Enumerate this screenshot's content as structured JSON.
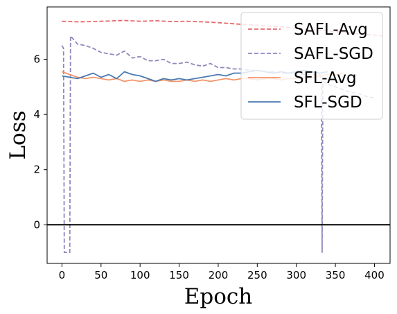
{
  "chart_data": {
    "type": "line",
    "title": "",
    "xlabel": "Epoch",
    "ylabel": "Loss",
    "xlim": [
      -19,
      420
    ],
    "ylim": [
      -1.4,
      7.9
    ],
    "xticks": [
      0,
      50,
      100,
      150,
      200,
      250,
      300,
      350,
      400
    ],
    "yticks": [
      0,
      2,
      4,
      6
    ],
    "grid": false,
    "legend": "top-right",
    "reference_line": {
      "y": 0,
      "color": "#000000"
    },
    "series": [
      {
        "name": "SAFL-Avg",
        "color": "#e8676b",
        "dash": "dashed",
        "points": [
          [
            0,
            7.38
          ],
          [
            20,
            7.36
          ],
          [
            40,
            7.37
          ],
          [
            60,
            7.39
          ],
          [
            80,
            7.41
          ],
          [
            100,
            7.38
          ],
          [
            120,
            7.4
          ],
          [
            140,
            7.37
          ],
          [
            160,
            7.38
          ],
          [
            180,
            7.36
          ],
          [
            200,
            7.33
          ],
          [
            220,
            7.29
          ],
          [
            240,
            7.25
          ],
          [
            260,
            7.22
          ],
          [
            280,
            7.18
          ],
          [
            300,
            7.12
          ],
          [
            320,
            7.08
          ],
          [
            340,
            7.03
          ],
          [
            360,
            6.98
          ],
          [
            380,
            6.92
          ],
          [
            400,
            6.88
          ],
          [
            410,
            6.85
          ]
        ]
      },
      {
        "name": "SAFL-SGD",
        "color": "#8d88bd",
        "dash": "dashed",
        "points": [
          [
            0,
            6.5
          ],
          [
            2,
            6.4
          ],
          [
            3,
            -1.0
          ],
          [
            10,
            -1.0
          ],
          [
            11,
            6.85
          ],
          [
            14,
            6.75
          ],
          [
            20,
            6.55
          ],
          [
            30,
            6.5
          ],
          [
            40,
            6.4
          ],
          [
            50,
            6.25
          ],
          [
            60,
            6.2
          ],
          [
            70,
            6.15
          ],
          [
            80,
            6.3
          ],
          [
            90,
            6.05
          ],
          [
            100,
            6.1
          ],
          [
            110,
            5.95
          ],
          [
            120,
            5.95
          ],
          [
            130,
            6.0
          ],
          [
            140,
            5.85
          ],
          [
            150,
            5.85
          ],
          [
            160,
            5.9
          ],
          [
            170,
            5.8
          ],
          [
            180,
            5.75
          ],
          [
            190,
            5.85
          ],
          [
            200,
            5.7
          ],
          [
            210,
            5.7
          ],
          [
            220,
            5.65
          ],
          [
            230,
            5.65
          ],
          [
            240,
            5.6
          ],
          [
            250,
            5.6
          ],
          [
            260,
            5.55
          ],
          [
            270,
            5.55
          ],
          [
            280,
            5.5
          ],
          [
            290,
            5.5
          ],
          [
            300,
            5.5
          ],
          [
            310,
            5.45
          ],
          [
            320,
            5.45
          ],
          [
            330,
            5.45
          ],
          [
            332,
            5.3
          ],
          [
            333,
            -1.0
          ],
          [
            334,
            5.2
          ],
          [
            340,
            5.1
          ],
          [
            350,
            5.0
          ],
          [
            360,
            4.9
          ],
          [
            370,
            4.8
          ],
          [
            380,
            4.75
          ],
          [
            390,
            4.65
          ],
          [
            400,
            4.6
          ]
        ]
      },
      {
        "name": "SFL-Avg",
        "color": "#f4956a",
        "dash": "solid",
        "points": [
          [
            0,
            5.55
          ],
          [
            10,
            5.45
          ],
          [
            20,
            5.35
          ],
          [
            30,
            5.3
          ],
          [
            40,
            5.35
          ],
          [
            50,
            5.3
          ],
          [
            60,
            5.25
          ],
          [
            70,
            5.3
          ],
          [
            80,
            5.2
          ],
          [
            90,
            5.25
          ],
          [
            100,
            5.2
          ],
          [
            110,
            5.25
          ],
          [
            120,
            5.2
          ],
          [
            130,
            5.25
          ],
          [
            140,
            5.2
          ],
          [
            150,
            5.2
          ],
          [
            160,
            5.25
          ],
          [
            170,
            5.2
          ],
          [
            180,
            5.25
          ],
          [
            190,
            5.2
          ],
          [
            200,
            5.25
          ],
          [
            210,
            5.3
          ],
          [
            220,
            5.25
          ],
          [
            230,
            5.3
          ],
          [
            240,
            5.3
          ],
          [
            250,
            5.25
          ],
          [
            260,
            5.3
          ],
          [
            270,
            5.3
          ],
          [
            280,
            5.25
          ],
          [
            290,
            5.3
          ],
          [
            300,
            5.3
          ],
          [
            310,
            5.35
          ],
          [
            320,
            5.35
          ],
          [
            330,
            5.4
          ],
          [
            340,
            5.45
          ],
          [
            350,
            5.45
          ],
          [
            360,
            5.5
          ]
        ]
      },
      {
        "name": "SFL-SGD",
        "color": "#4a7ab0",
        "dash": "solid",
        "points": [
          [
            0,
            5.4
          ],
          [
            10,
            5.35
          ],
          [
            20,
            5.3
          ],
          [
            30,
            5.4
          ],
          [
            40,
            5.5
          ],
          [
            50,
            5.35
          ],
          [
            60,
            5.45
          ],
          [
            70,
            5.3
          ],
          [
            80,
            5.55
          ],
          [
            90,
            5.45
          ],
          [
            100,
            5.4
          ],
          [
            110,
            5.3
          ],
          [
            120,
            5.2
          ],
          [
            130,
            5.3
          ],
          [
            140,
            5.25
          ],
          [
            150,
            5.3
          ],
          [
            160,
            5.25
          ],
          [
            170,
            5.3
          ],
          [
            180,
            5.35
          ],
          [
            190,
            5.4
          ],
          [
            200,
            5.45
          ],
          [
            210,
            5.4
          ],
          [
            220,
            5.5
          ],
          [
            230,
            5.5
          ],
          [
            240,
            5.55
          ],
          [
            250,
            5.6
          ],
          [
            260,
            5.55
          ],
          [
            270,
            5.5
          ],
          [
            280,
            5.55
          ],
          [
            290,
            5.5
          ],
          [
            300,
            5.55
          ],
          [
            310,
            5.6
          ],
          [
            320,
            5.55
          ],
          [
            330,
            5.5
          ],
          [
            340,
            5.55
          ]
        ]
      }
    ]
  }
}
